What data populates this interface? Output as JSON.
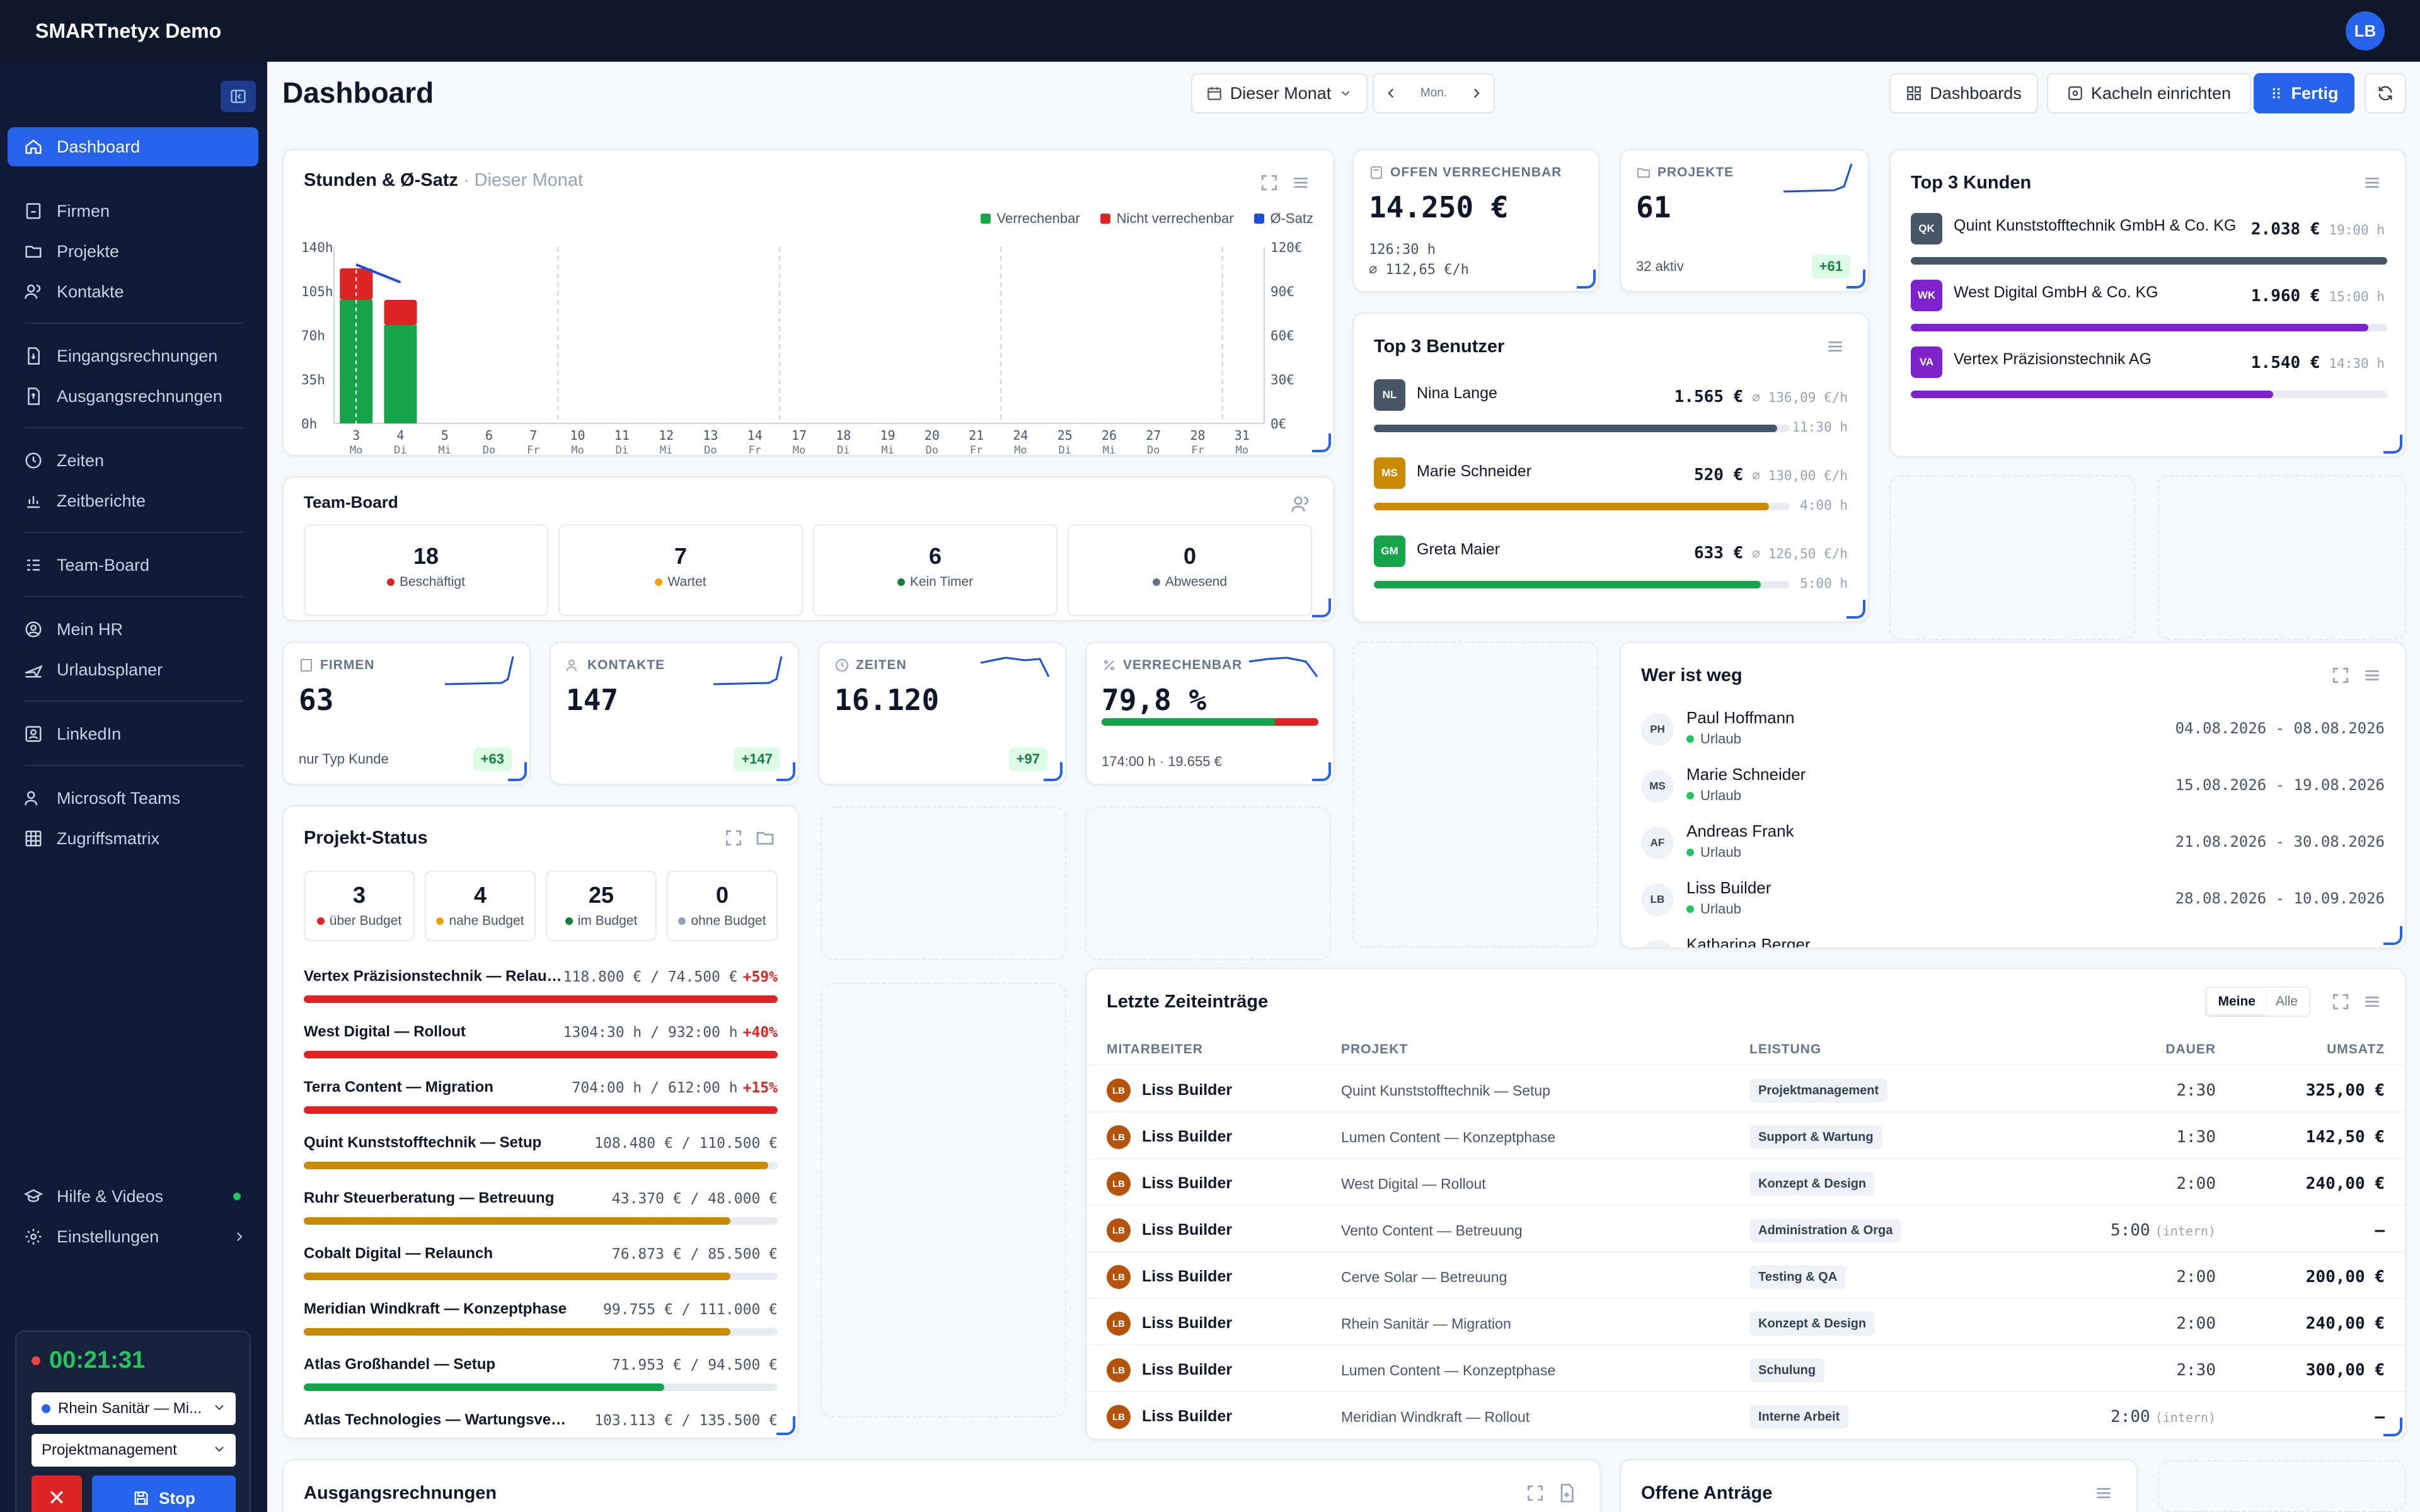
{
  "app": {
    "title": "SMARTnetyx Demo",
    "user_initials": "LB"
  },
  "sidebar": {
    "items": [
      {
        "label": "Dashboard",
        "icon": "home-icon"
      },
      {
        "label": "Firmen",
        "icon": "building-icon"
      },
      {
        "label": "Projekte",
        "icon": "folder-icon"
      },
      {
        "label": "Kontakte",
        "icon": "users-icon"
      },
      {
        "label": "Eingangsrechnungen",
        "icon": "file-in-icon"
      },
      {
        "label": "Ausgangsrechnungen",
        "icon": "file-out-icon"
      },
      {
        "label": "Zeiten",
        "icon": "clock-icon"
      },
      {
        "label": "Zeitberichte",
        "icon": "chart-icon"
      },
      {
        "label": "Team-Board",
        "icon": "list-icon"
      },
      {
        "label": "Mein HR",
        "icon": "user-circle-icon"
      },
      {
        "label": "Urlaubsplaner",
        "icon": "plane-icon"
      },
      {
        "label": "LinkedIn",
        "icon": "linkedin-icon"
      },
      {
        "label": "Microsoft Teams",
        "icon": "teams-icon"
      },
      {
        "label": "Zugriffsmatrix",
        "icon": "grid-icon"
      },
      {
        "label": "Hilfe & Videos",
        "icon": "graduation-icon"
      },
      {
        "label": "Einstellungen",
        "icon": "gear-icon"
      }
    ],
    "timer": {
      "time": "00:21:31",
      "project": "Rhein Sanitär — Mi...",
      "service": "Projektmanagement",
      "stop_label": "Stop",
      "cancel_label": "✕"
    }
  },
  "header": {
    "title": "Dashboard",
    "period": "Dieser Monat",
    "period_short": "Mon.",
    "dashboards_label": "Dashboards",
    "tiles_label": "Kacheln einrichten",
    "done_label": "Fertig"
  },
  "hours_chart": {
    "title": "Stunden & Ø-Satz",
    "subtitle": "· Dieser Monat",
    "legend": [
      "Verrechenbar",
      "Nicht verrechenbar",
      "Ø-Satz"
    ],
    "colors": {
      "billable": "#16a34a",
      "nonbillable": "#dc2626",
      "rate": "#1d4ed8"
    }
  },
  "chart_data": {
    "type": "bar",
    "categories": [
      "3",
      "4",
      "5",
      "6",
      "7",
      "10",
      "11",
      "12",
      "13",
      "14",
      "17",
      "18",
      "19",
      "20",
      "21",
      "24",
      "25",
      "26",
      "27",
      "28",
      "31"
    ],
    "weekdays": [
      "Mo",
      "Di",
      "Mi",
      "Do",
      "Fr",
      "Mo",
      "Di",
      "Mi",
      "Do",
      "Fr",
      "Mo",
      "Di",
      "Mi",
      "Do",
      "Fr",
      "Mo",
      "Di",
      "Mi",
      "Do",
      "Fr",
      "Mo"
    ],
    "series": [
      {
        "name": "Verrechenbar",
        "values": [
          98,
          78,
          0,
          0,
          0,
          0,
          0,
          0,
          0,
          0,
          0,
          0,
          0,
          0,
          0,
          0,
          0,
          0,
          0,
          0,
          0
        ]
      },
      {
        "name": "Nicht verrechenbar",
        "values": [
          25,
          20,
          0,
          0,
          0,
          0,
          0,
          0,
          0,
          0,
          0,
          0,
          0,
          0,
          0,
          0,
          0,
          0,
          0,
          0,
          0
        ]
      },
      {
        "name": "Ø-Satz",
        "values": [
          135,
          120,
          null,
          null,
          null,
          null,
          null,
          null,
          null,
          null,
          null,
          null,
          null,
          null,
          null,
          null,
          null,
          null,
          null,
          null,
          null
        ]
      }
    ],
    "y_ticks": [
      "140h",
      "105h",
      "70h",
      "35h",
      "0h"
    ],
    "y2_ticks": [
      "120€",
      "90€",
      "60€",
      "30€",
      "0€"
    ],
    "ylim": [
      0,
      140
    ],
    "y2lim": [
      0,
      150
    ]
  },
  "team_board": {
    "title": "Team-Board",
    "stats": [
      {
        "value": "18",
        "label": "Beschäftigt",
        "color": "#dc2626"
      },
      {
        "value": "7",
        "label": "Wartet",
        "color": "#f59e0b"
      },
      {
        "value": "6",
        "label": "Kein Timer",
        "color": "#15803d"
      },
      {
        "value": "0",
        "label": "Abwesend",
        "color": "#64748b"
      }
    ]
  },
  "kpi_open": {
    "label": "OFFEN VERRECHENBAR",
    "value": "14.250 €",
    "sub1": "126:30 h",
    "sub2": "⌀ 112,65 €/h"
  },
  "kpi_projects": {
    "label": "PROJEKTE",
    "value": "61",
    "sub": "32 aktiv",
    "delta": "+61"
  },
  "kpi_firmen": {
    "label": "FIRMEN",
    "value": "63",
    "sub": "nur Typ Kunde",
    "delta": "+63"
  },
  "kpi_kontakte": {
    "label": "KONTAKTE",
    "value": "147",
    "delta": "+147"
  },
  "kpi_zeiten": {
    "label": "ZEITEN",
    "value": "16.120",
    "delta": "+97"
  },
  "kpi_verrechenbar": {
    "label": "VERRECHENBAR",
    "value": "79,8 %",
    "sub": "174:00 h · 19.655 €",
    "progress": 0.798
  },
  "top_users": {
    "title": "Top 3 Benutzer",
    "items": [
      {
        "initials": "NL",
        "name": "Nina Lange",
        "amount": "1.565 €",
        "rate": "⌀ 136,09 €/h",
        "hours": "11:30 h",
        "color": "#475569",
        "share": 0.97
      },
      {
        "initials": "MS",
        "name": "Marie Schneider",
        "amount": "520 €",
        "rate": "⌀ 130,00 €/h",
        "hours": "4:00 h",
        "color": "#ca8a04",
        "share": 0.95
      },
      {
        "initials": "GM",
        "name": "Greta Maier",
        "amount": "633 €",
        "rate": "⌀ 126,50 €/h",
        "hours": "5:00 h",
        "color": "#16a34a",
        "share": 0.93
      }
    ]
  },
  "top_customers": {
    "title": "Top 3 Kunden",
    "items": [
      {
        "initials": "QK",
        "name": "Quint Kunststofftechnik GmbH & Co. KG",
        "amount": "2.038 €",
        "hours": "19:00 h",
        "color": "#475569",
        "share": 1.0
      },
      {
        "initials": "WK",
        "name": "West Digital GmbH & Co. KG",
        "amount": "1.960 €",
        "hours": "15:00 h",
        "color": "#7e22ce",
        "share": 0.96
      },
      {
        "initials": "VA",
        "name": "Vertex Präzisionstechnik AG",
        "amount": "1.540 €",
        "hours": "14:30 h",
        "color": "#7e22ce",
        "share": 0.76
      }
    ]
  },
  "absent": {
    "title": "Wer ist weg",
    "items": [
      {
        "initials": "PH",
        "name": "Paul Hoffmann",
        "type": "Urlaub",
        "dates": "04.08.2026 - 08.08.2026"
      },
      {
        "initials": "MS",
        "name": "Marie Schneider",
        "type": "Urlaub",
        "dates": "15.08.2026 - 19.08.2026"
      },
      {
        "initials": "AF",
        "name": "Andreas Frank",
        "type": "Urlaub",
        "dates": "21.08.2026 - 30.08.2026"
      },
      {
        "initials": "LB",
        "name": "Liss Builder",
        "type": "Urlaub",
        "dates": "28.08.2026 - 10.09.2026"
      },
      {
        "initials": "KB",
        "name": "Katharina Berger",
        "type": "",
        "dates": ""
      }
    ]
  },
  "project_status": {
    "title": "Projekt-Status",
    "stats": [
      {
        "value": "3",
        "label": "über Budget",
        "color": "#dc2626"
      },
      {
        "value": "4",
        "label": "nahe Budget",
        "color": "#f59e0b"
      },
      {
        "value": "25",
        "label": "im Budget",
        "color": "#15803d"
      },
      {
        "value": "0",
        "label": "ohne Budget",
        "color": "#94a3b8"
      }
    ],
    "rows": [
      {
        "name": "Vertex Präzisionstechnik — Relaun...",
        "value": "118.800 € / 74.500 €",
        "over": "+59%",
        "color": "#dc2626",
        "fill": 1.0
      },
      {
        "name": "West Digital — Rollout",
        "value": "1304:30 h / 932:00 h",
        "over": "+40%",
        "color": "#dc2626",
        "fill": 1.0
      },
      {
        "name": "Terra Content — Migration",
        "value": "704:00 h / 612:00 h",
        "over": "+15%",
        "color": "#dc2626",
        "fill": 1.0
      },
      {
        "name": "Quint Kunststofftechnik — Setup",
        "value": "108.480 € / 110.500 €",
        "over": "",
        "color": "#ca8a04",
        "fill": 0.98
      },
      {
        "name": "Ruhr Steuerberatung — Betreuung",
        "value": "43.370 € / 48.000 €",
        "over": "",
        "color": "#ca8a04",
        "fill": 0.9
      },
      {
        "name": "Cobalt Digital — Relaunch",
        "value": "76.873 € / 85.500 €",
        "over": "",
        "color": "#ca8a04",
        "fill": 0.9
      },
      {
        "name": "Meridian Windkraft — Konzeptphase",
        "value": "99.755 € / 111.000 €",
        "over": "",
        "color": "#ca8a04",
        "fill": 0.9
      },
      {
        "name": "Atlas Großhandel — Setup",
        "value": "71.953 € / 94.500 €",
        "over": "",
        "color": "#16a34a",
        "fill": 0.76
      },
      {
        "name": "Atlas Technologies — Wartungsvertrag",
        "value": "103.113 € / 135.500 €",
        "over": "",
        "color": "#16a34a",
        "fill": 0.76
      }
    ]
  },
  "time_entries": {
    "title": "Letzte Zeiteinträge",
    "toggle": [
      "Meine",
      "Alle"
    ],
    "columns": [
      "MITARBEITER",
      "PROJEKT",
      "LEISTUNG",
      "DAUER",
      "UMSATZ"
    ],
    "rows": [
      {
        "initials": "LB",
        "who": "Liss Builder",
        "project": "Quint Kunststofftechnik — Setup",
        "service": "Projektmanagement",
        "duration": "2:30",
        "note": "",
        "revenue": "325,00 €"
      },
      {
        "initials": "LB",
        "who": "Liss Builder",
        "project": "Lumen Content — Konzeptphase",
        "service": "Support & Wartung",
        "duration": "1:30",
        "note": "",
        "revenue": "142,50 €"
      },
      {
        "initials": "LB",
        "who": "Liss Builder",
        "project": "West Digital — Rollout",
        "service": "Konzept & Design",
        "duration": "2:00",
        "note": "",
        "revenue": "240,00 €"
      },
      {
        "initials": "LB",
        "who": "Liss Builder",
        "project": "Vento Content — Betreuung",
        "service": "Administration & Orga",
        "duration": "5:00",
        "note": "(intern)",
        "revenue": "–"
      },
      {
        "initials": "LB",
        "who": "Liss Builder",
        "project": "Cerve Solar — Betreuung",
        "service": "Testing & QA",
        "duration": "2:00",
        "note": "",
        "revenue": "200,00 €"
      },
      {
        "initials": "LB",
        "who": "Liss Builder",
        "project": "Rhein Sanitär — Migration",
        "service": "Konzept & Design",
        "duration": "2:00",
        "note": "",
        "revenue": "240,00 €"
      },
      {
        "initials": "LB",
        "who": "Liss Builder",
        "project": "Lumen Content — Konzeptphase",
        "service": "Schulung",
        "duration": "2:30",
        "note": "",
        "revenue": "300,00 €"
      },
      {
        "initials": "LB",
        "who": "Liss Builder",
        "project": "Meridian Windkraft — Rollout",
        "service": "Interne Arbeit",
        "duration": "2:00",
        "note": "(intern)",
        "revenue": "–"
      }
    ]
  },
  "bottom": {
    "invoices_title": "Ausgangsrechnungen",
    "requests_title": "Offene Anträge"
  }
}
